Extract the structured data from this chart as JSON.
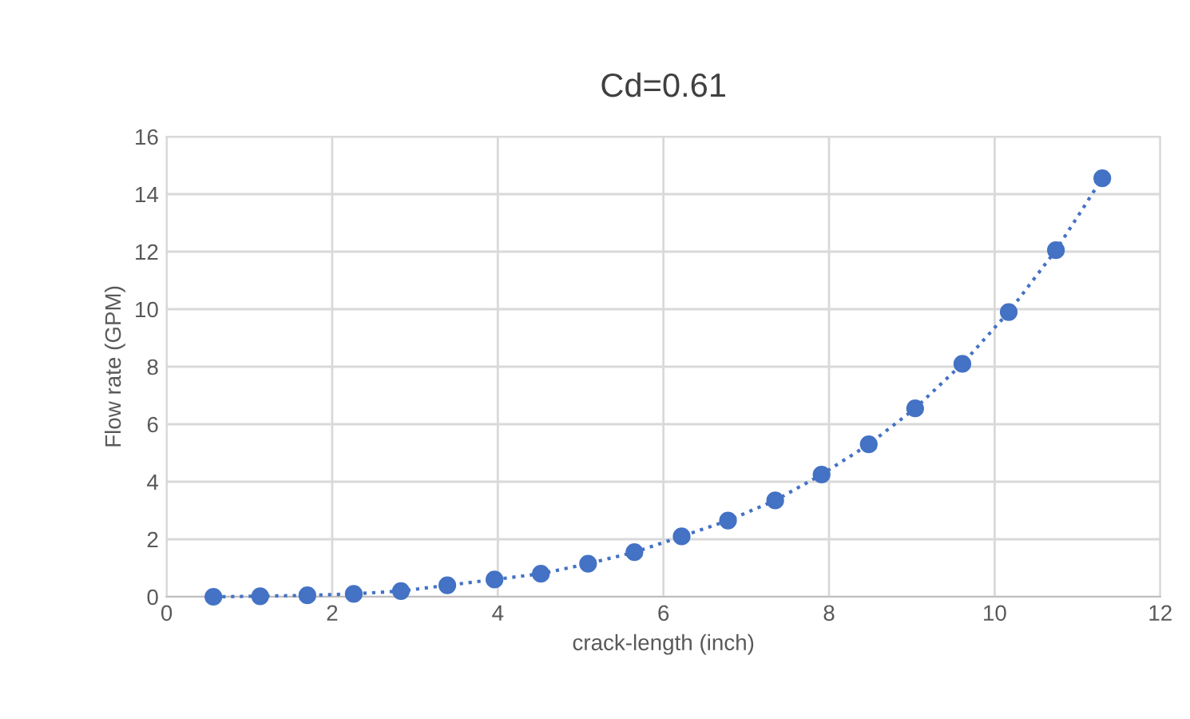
{
  "chart_data": {
    "type": "line",
    "title": "Cd=0.61",
    "xlabel": "crack-length (inch)",
    "ylabel": "Flow rate (GPM)",
    "x": [
      0.565,
      1.13,
      1.7,
      2.26,
      2.83,
      3.39,
      3.96,
      4.52,
      5.09,
      5.65,
      6.22,
      6.78,
      7.35,
      7.91,
      8.48,
      9.04,
      9.61,
      10.17,
      10.74,
      11.3
    ],
    "series": [
      {
        "color": "#4472c4",
        "values": [
          0.0,
          0.02,
          0.05,
          0.1,
          0.2,
          0.4,
          0.6,
          0.8,
          1.15,
          1.55,
          2.1,
          2.65,
          3.35,
          4.25,
          5.3,
          6.55,
          8.1,
          9.9,
          12.05,
          14.55
        ]
      }
    ],
    "xlim": [
      0,
      12
    ],
    "xticks": [
      0,
      2,
      4,
      6,
      8,
      10,
      12
    ],
    "ylim": [
      0,
      16
    ],
    "yticks": [
      0,
      2,
      4,
      6,
      8,
      10,
      12,
      14,
      16
    ],
    "grid": true,
    "marker": "circle",
    "line_style": "dotted"
  }
}
